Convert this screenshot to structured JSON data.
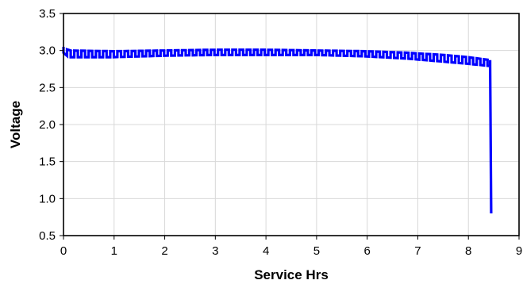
{
  "chart_data": {
    "type": "line",
    "title": "",
    "xlabel": "Service Hrs",
    "ylabel": "Voltage",
    "xlim": [
      0,
      9
    ],
    "ylim": [
      0.5,
      3.5
    ],
    "x_ticks": [
      "0",
      "1",
      "2",
      "3",
      "4",
      "5",
      "6",
      "7",
      "8",
      "9"
    ],
    "y_ticks": [
      "0.5",
      "1.0",
      "1.5",
      "2.0",
      "2.5",
      "3.0",
      "3.5"
    ],
    "grid": true,
    "legend": "none",
    "series": [
      {
        "color": "#0000ff",
        "pulse_period_hrs": 0.142,
        "high_voltage": [
          [
            0,
            3.05
          ],
          [
            0.1,
            3.0
          ],
          [
            1,
            2.99
          ],
          [
            2,
            3.0
          ],
          [
            3,
            3.01
          ],
          [
            4,
            3.01
          ],
          [
            5,
            3.0
          ],
          [
            6,
            2.99
          ],
          [
            6.8,
            2.97
          ],
          [
            7.5,
            2.94
          ],
          [
            8.0,
            2.91
          ],
          [
            8.43,
            2.87
          ]
        ],
        "low_voltage": [
          [
            0,
            2.97
          ],
          [
            0.1,
            2.91
          ],
          [
            1,
            2.91
          ],
          [
            2,
            2.93
          ],
          [
            3,
            2.94
          ],
          [
            4,
            2.94
          ],
          [
            5,
            2.94
          ],
          [
            6,
            2.92
          ],
          [
            6.8,
            2.89
          ],
          [
            7.5,
            2.85
          ],
          [
            8.0,
            2.82
          ],
          [
            8.43,
            2.79
          ]
        ],
        "cutoff": [
          [
            8.43,
            2.79
          ],
          [
            8.45,
            0.8
          ]
        ]
      }
    ]
  }
}
